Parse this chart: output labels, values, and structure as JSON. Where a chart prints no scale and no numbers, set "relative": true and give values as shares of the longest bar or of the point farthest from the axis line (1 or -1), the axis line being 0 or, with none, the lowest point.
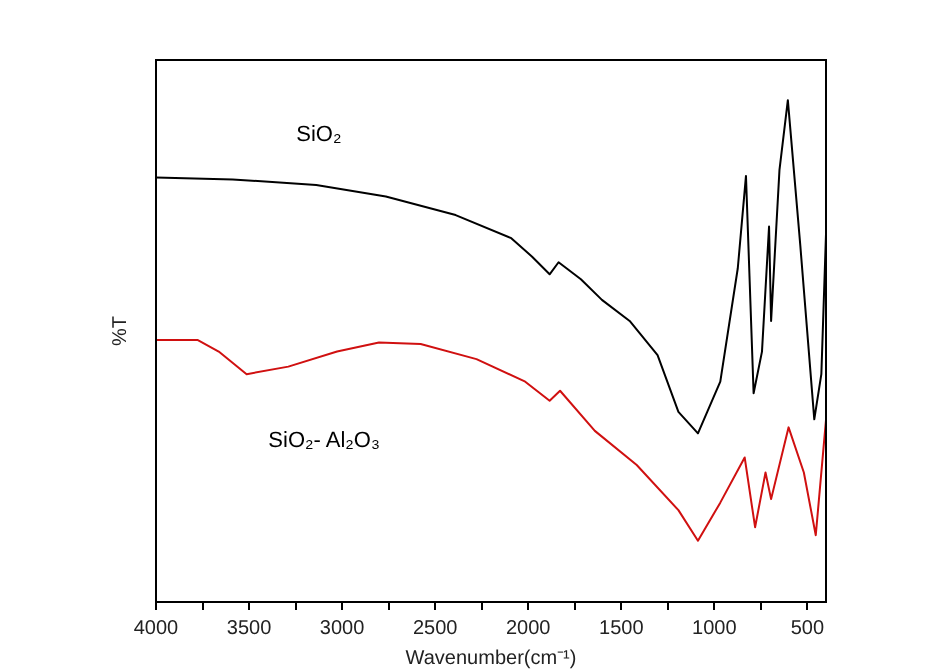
{
  "chart_data": {
    "type": "line",
    "xlabel": "Wavenumber(cm⁻¹)",
    "ylabel": "%T",
    "relative": true,
    "grid": false,
    "legend": false,
    "marker": "none",
    "line_style": "solid",
    "xlim": [
      4000,
      400
    ],
    "xticks": [
      4000,
      {
        "value": 3750,
        "label": null
      },
      3500,
      {
        "value": 3250,
        "label": null
      },
      3000,
      {
        "value": 2750,
        "label": null
      },
      2500,
      {
        "value": 2250,
        "label": null
      },
      2000,
      {
        "value": 1750,
        "label": null
      },
      1500,
      {
        "value": 1250,
        "label": null
      },
      1000,
      {
        "value": 750,
        "label": null
      },
      500
    ],
    "series": [
      {
        "name": "SiO₂",
        "color": "#000000",
        "x": [
          4000,
          3588,
          3139,
          2765,
          2390,
          2091,
          1979,
          1885,
          1837,
          1717,
          1604,
          1455,
          1305,
          1193,
          1088,
          968,
          874,
          830,
          789,
          744,
          706,
          695,
          650,
          605,
          538,
          463,
          425,
          400
        ],
        "values": [
          0.846,
          0.842,
          0.831,
          0.808,
          0.771,
          0.725,
          0.688,
          0.653,
          0.677,
          0.643,
          0.602,
          0.56,
          0.492,
          0.379,
          0.336,
          0.439,
          0.665,
          0.849,
          0.416,
          0.499,
          0.748,
          0.56,
          0.861,
          1.0,
          0.71,
          0.364,
          0.454,
          0.733
        ]
      },
      {
        "name": "SiO₂- Al₂O₃",
        "color": "#d01010",
        "x": [
          4000,
          3775,
          3663,
          3513,
          3289,
          3027,
          2802,
          2578,
          2278,
          2016,
          1885,
          1829,
          1642,
          1417,
          1193,
          1088,
          968,
          837,
          781,
          725,
          695,
          601,
          519,
          455,
          400
        ],
        "values": [
          0.522,
          0.522,
          0.499,
          0.454,
          0.469,
          0.499,
          0.517,
          0.514,
          0.484,
          0.439,
          0.401,
          0.421,
          0.341,
          0.273,
          0.183,
          0.122,
          0.198,
          0.288,
          0.149,
          0.258,
          0.205,
          0.348,
          0.258,
          0.133,
          0.363
        ]
      }
    ]
  }
}
